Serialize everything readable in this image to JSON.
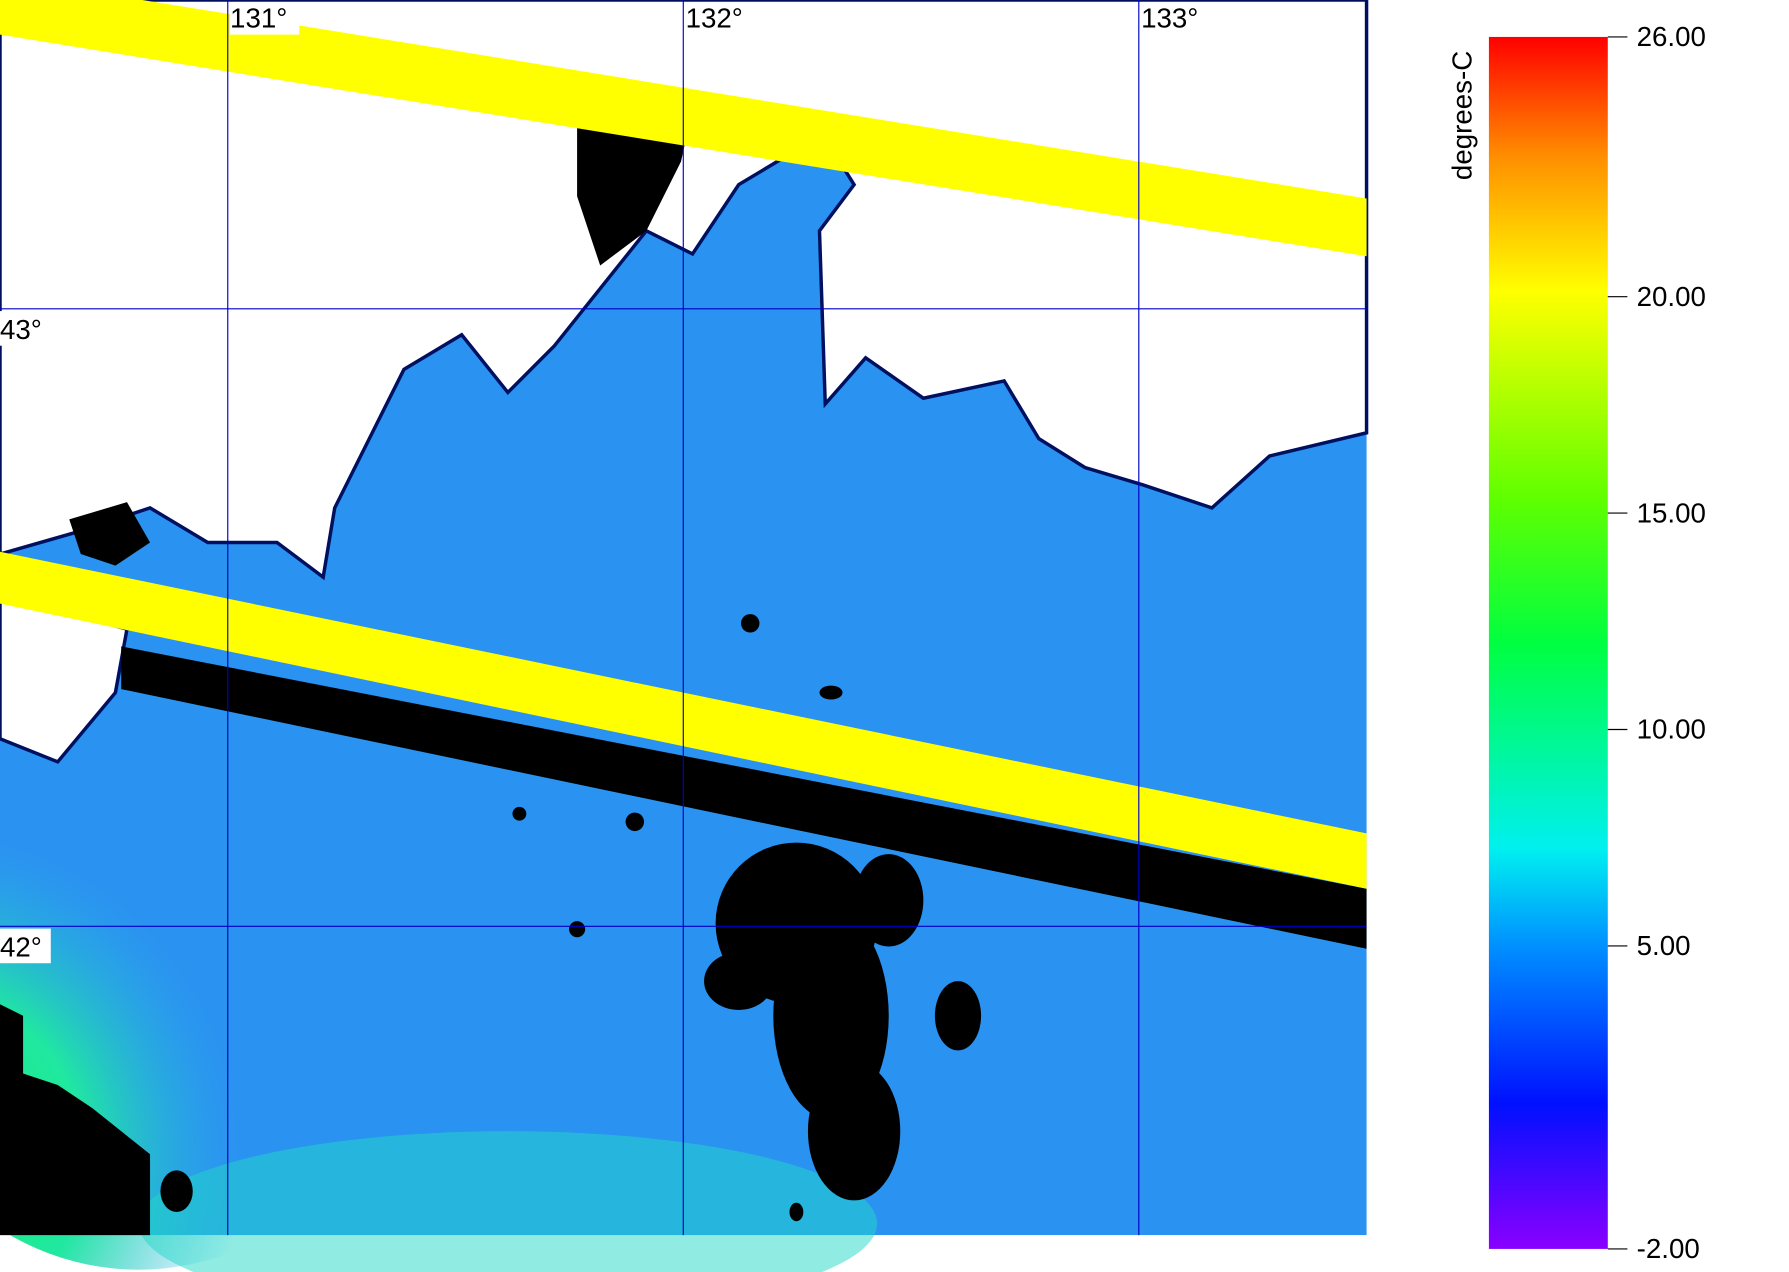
{
  "map": {
    "lon_range": [
      130.5,
      133.5
    ],
    "lat_range": [
      41.5,
      43.5
    ],
    "lon_ticks": [
      {
        "value": 131,
        "label": "131°"
      },
      {
        "value": 132,
        "label": "132°"
      },
      {
        "value": 133,
        "label": "133°"
      }
    ],
    "lat_ticks": [
      {
        "value": 43,
        "label": "43°"
      },
      {
        "value": 42,
        "label": "42°"
      }
    ]
  },
  "colorbar": {
    "label": "degrees-C",
    "range": [
      -2,
      26
    ],
    "ticks": [
      {
        "value": 26,
        "label": "26.00"
      },
      {
        "value": 20,
        "label": "20.00"
      },
      {
        "value": 15,
        "label": "15.00"
      },
      {
        "value": 10,
        "label": "10.00"
      },
      {
        "value": 5,
        "label": "5.00"
      },
      {
        "value": -2,
        "label": "-2.00"
      }
    ]
  }
}
